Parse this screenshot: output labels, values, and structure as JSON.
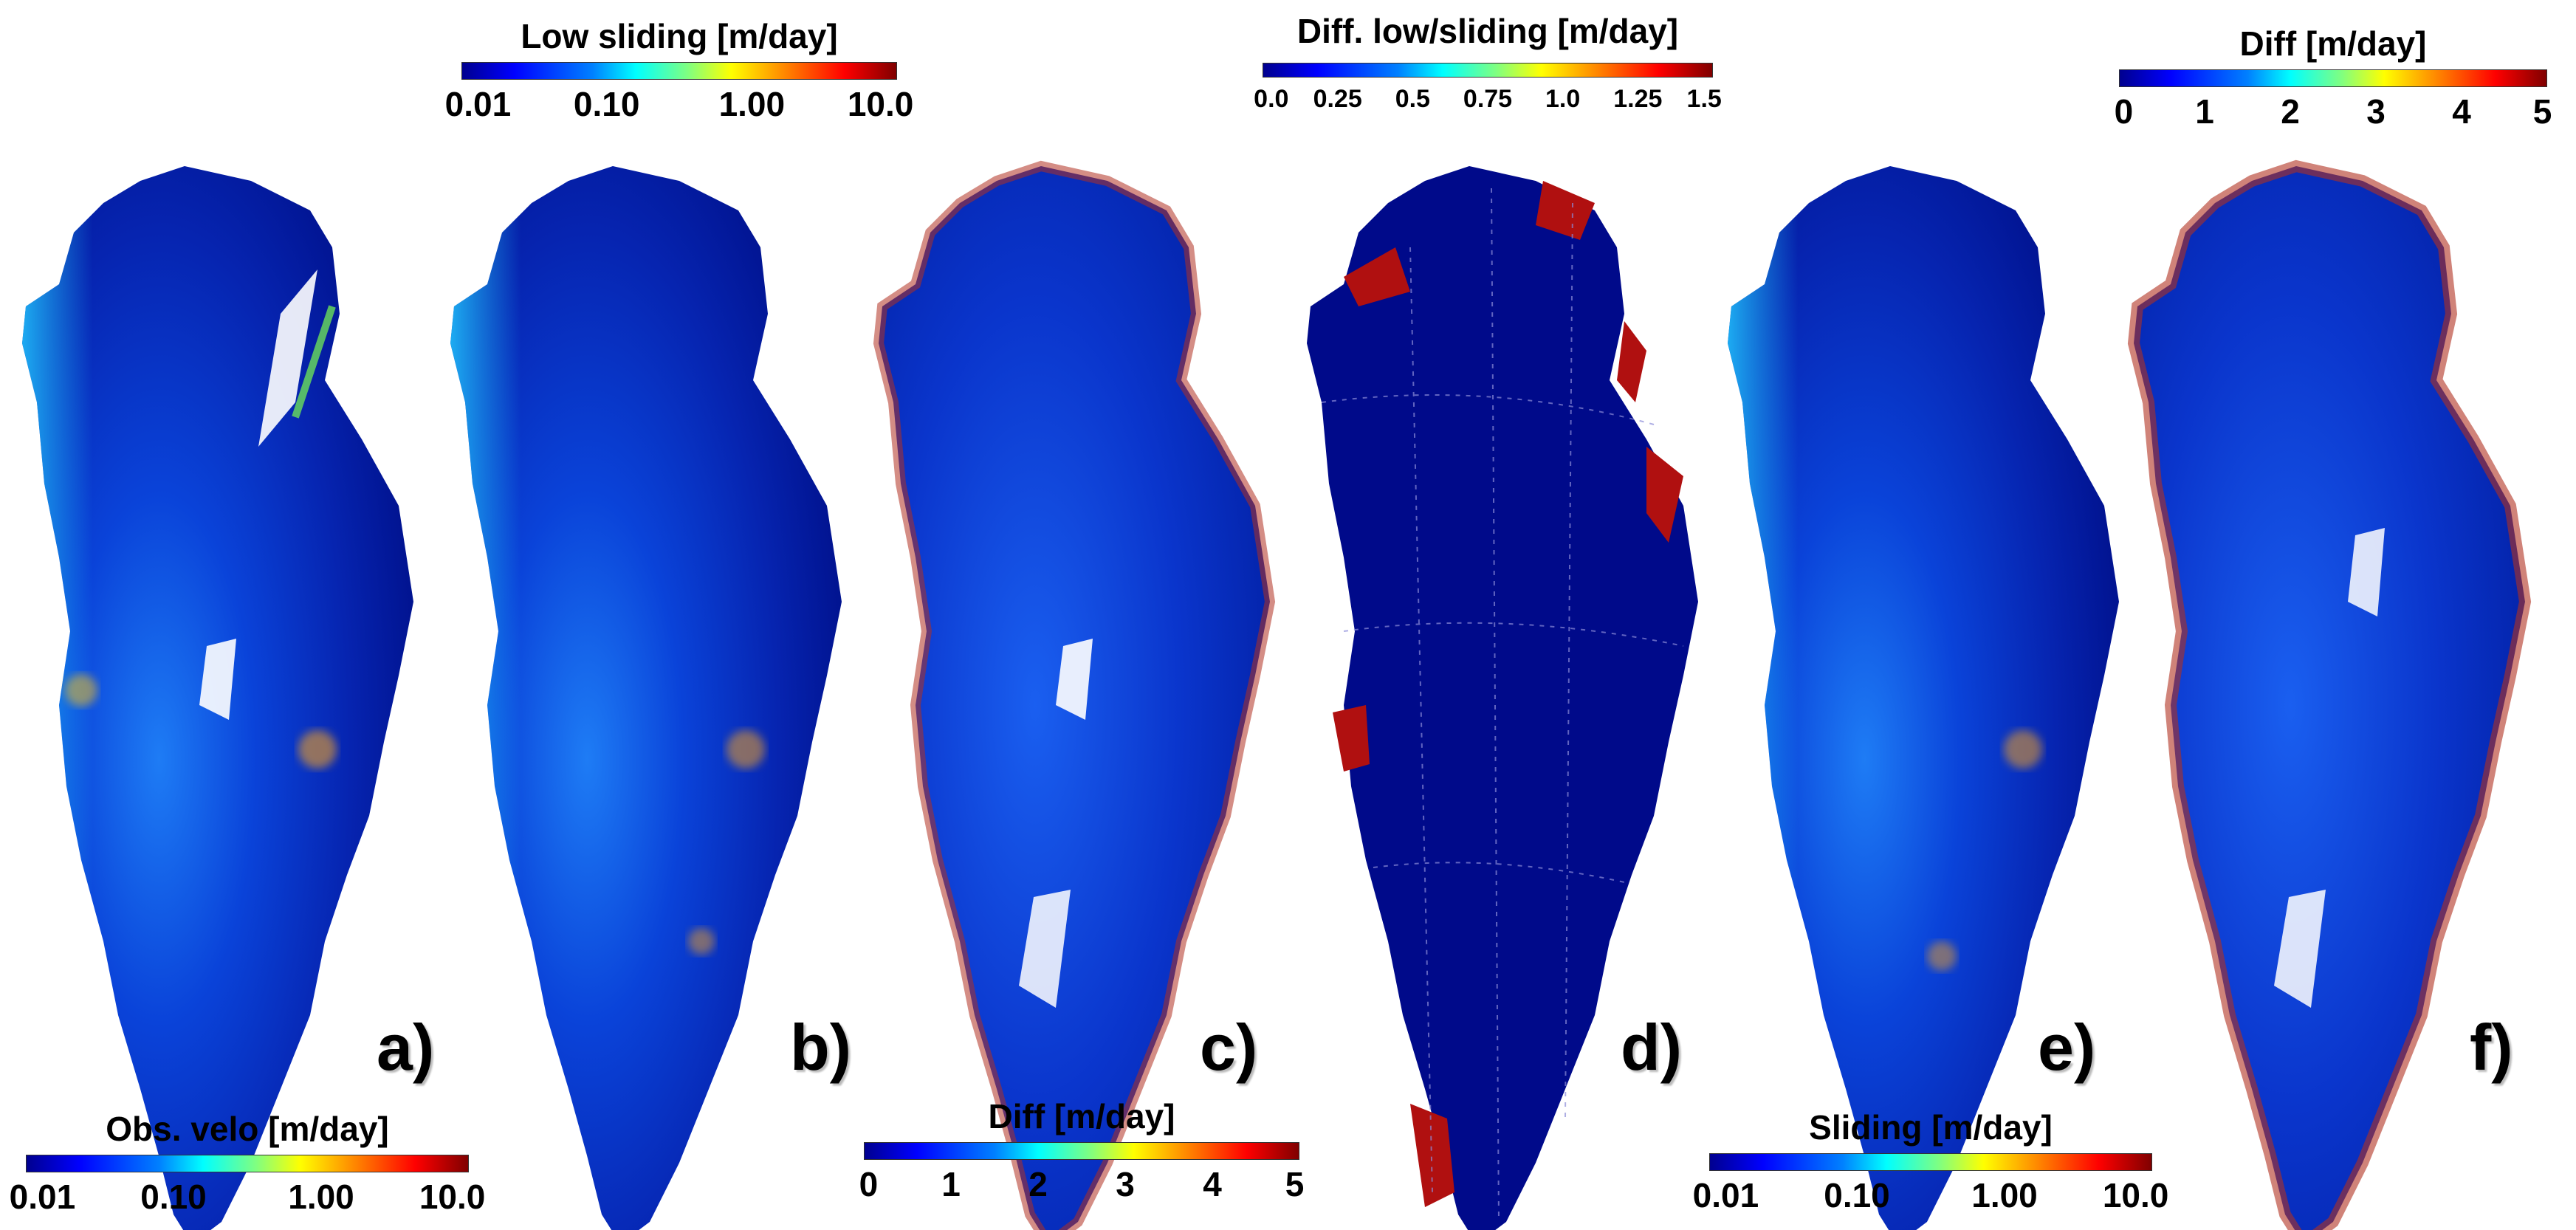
{
  "colors": {
    "ocean_dark_blue": "#000a8a",
    "ice_blue": "#0a40f0",
    "fast_cyan": "#21c4ff",
    "diff_red": "#b01010",
    "grid_line": "#8c8cd8"
  },
  "colorbars": {
    "obs": {
      "title": "Obs. velo [m/day]",
      "scale": "jet",
      "ticks": [
        "0.01",
        "0.10",
        "1.00",
        "10.0"
      ]
    },
    "low_sliding": {
      "title": "Low sliding [m/day]",
      "scale": "jet",
      "ticks": [
        "0.01",
        "0.10",
        "1.00",
        "10.0"
      ]
    },
    "diff_c": {
      "title": "Diff [m/day]",
      "scale": "jet",
      "ticks": [
        "0",
        "1",
        "2",
        "3",
        "4",
        "5"
      ]
    },
    "diff_low_sliding": {
      "title": "Diff. low/sliding [m/day]",
      "scale": "jet",
      "ticks": [
        "0.0",
        "0.25",
        "0.5",
        "0.75",
        "1.0",
        "1.25",
        "1.5"
      ]
    },
    "sliding": {
      "title": "Sliding [m/day]",
      "scale": "jet",
      "ticks": [
        "0.01",
        "0.10",
        "1.00",
        "10.0"
      ]
    },
    "diff_f": {
      "title": "Diff [m/day]",
      "scale": "jet",
      "ticks": [
        "0",
        "1",
        "2",
        "3",
        "4",
        "5"
      ]
    }
  },
  "panels": [
    {
      "label": "a)",
      "content": "observed velocity map",
      "style": "velocity"
    },
    {
      "label": "b)",
      "content": "low sliding velocity map",
      "style": "velocity"
    },
    {
      "label": "c)",
      "content": "difference map",
      "style": "difference"
    },
    {
      "label": "d)",
      "content": "low/sliding difference map",
      "style": "low-diff"
    },
    {
      "label": "e)",
      "content": "sliding velocity map",
      "style": "velocity"
    },
    {
      "label": "f)",
      "content": "difference map",
      "style": "difference"
    }
  ]
}
